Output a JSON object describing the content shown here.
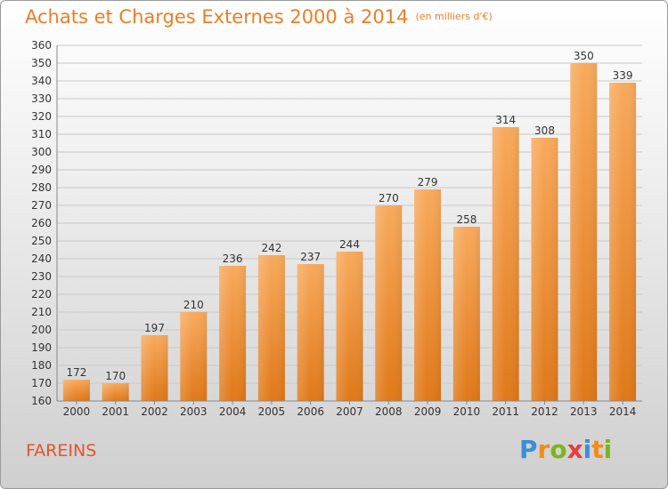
{
  "title": "Achats et Charges Externes 2000 à 2014",
  "subtitle": "(en milliers d'€)",
  "place": "FAREINS",
  "logo": {
    "text": "Proxiti",
    "letters": [
      {
        "ch": "P",
        "color": "#3b8ed8"
      },
      {
        "ch": "r",
        "color": "#f28c1a"
      },
      {
        "ch": "o",
        "color": "#7ab51d"
      },
      {
        "ch": "x",
        "color": "#e83d3d"
      },
      {
        "ch": "i",
        "color": "#3b8ed8"
      },
      {
        "ch": "t",
        "color": "#f28c1a"
      },
      {
        "ch": "i",
        "color": "#7ab51d"
      }
    ]
  },
  "colors": {
    "accent": "#f07c24",
    "bar_top": "#f7a85a",
    "bar_bottom": "#e07818",
    "grid": "#c8c8c8"
  },
  "chart_data": {
    "type": "bar",
    "title": "Achats et Charges Externes 2000 à 2014",
    "subtitle": "(en milliers d'€)",
    "categories": [
      "2000",
      "2001",
      "2002",
      "2003",
      "2004",
      "2005",
      "2006",
      "2007",
      "2008",
      "2009",
      "2010",
      "2011",
      "2012",
      "2013",
      "2014"
    ],
    "values": [
      172,
      170,
      197,
      210,
      236,
      242,
      237,
      244,
      270,
      279,
      258,
      314,
      308,
      350,
      339
    ],
    "ylim": [
      160,
      360
    ],
    "ytick_step": 10,
    "grid": true
  }
}
